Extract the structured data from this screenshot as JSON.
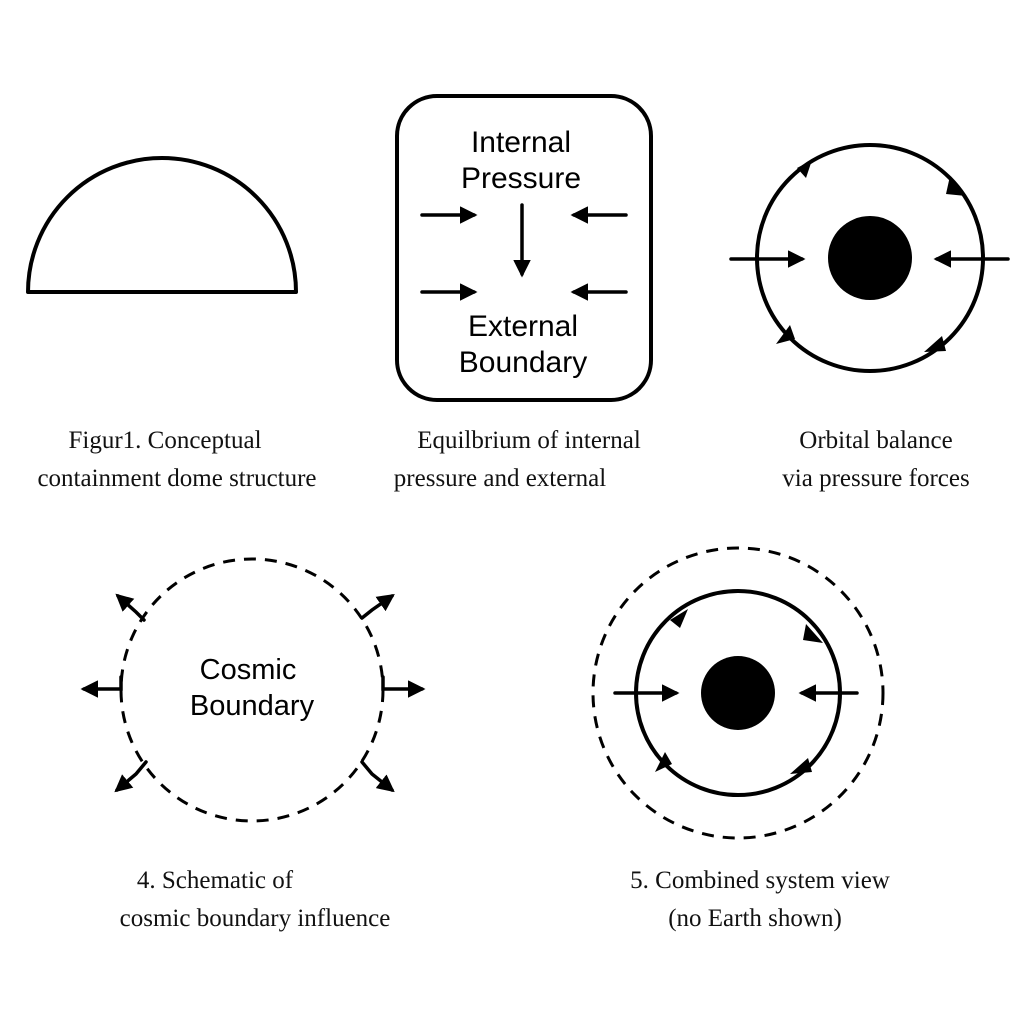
{
  "panel1": {
    "caption_line1": "Figur1. Conceptual",
    "caption_line2": "containment dome structure"
  },
  "panel2": {
    "label_top_line1": "Internal",
    "label_top_line2": "Pressure",
    "label_bottom_line1": "External",
    "label_bottom_line2": "Boundary",
    "caption_line1": "Equilbrium of internal",
    "caption_line2": "pressure and external"
  },
  "panel3": {
    "caption_line1": "Orbital balance",
    "caption_line2": "via pressure forces"
  },
  "panel4": {
    "label_line1": "Cosmic",
    "label_line2": "Boundary",
    "caption_line1": "4. Schematic of",
    "caption_line2": "cosmic boundary influence"
  },
  "panel5": {
    "caption_line1": "5. Combined system view",
    "caption_line2": "(no Earth shown)"
  },
  "colors": {
    "ink": "#000000",
    "background": "#ffffff"
  }
}
